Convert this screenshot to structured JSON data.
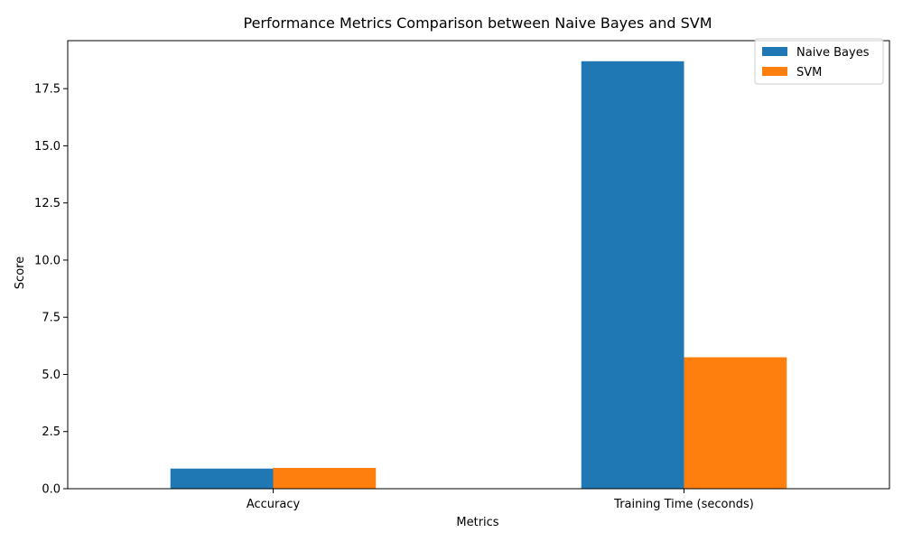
{
  "chart_data": {
    "type": "bar",
    "title": "Performance Metrics Comparison between Naive Bayes and SVM",
    "xlabel": "Metrics",
    "ylabel": "Score",
    "categories": [
      "Accuracy",
      "Training Time (seconds)"
    ],
    "series": [
      {
        "name": "Naive Bayes",
        "color": "#1f77b4",
        "values": [
          0.88,
          18.7
        ]
      },
      {
        "name": "SVM",
        "color": "#ff7f0e",
        "values": [
          0.91,
          5.75
        ]
      }
    ],
    "ylim": [
      0,
      19.6
    ],
    "yticks": [
      "0.0",
      "2.5",
      "5.0",
      "7.5",
      "10.0",
      "12.5",
      "15.0",
      "17.5"
    ],
    "grid": false,
    "legend_position": "top-right"
  }
}
